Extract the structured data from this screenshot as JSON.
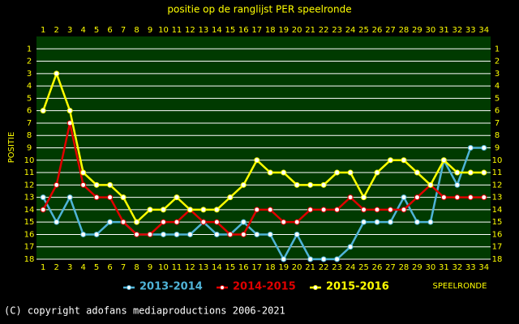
{
  "chart_data": {
    "type": "line",
    "title": "positie op de ranglijst PER speelronde",
    "ylabel": "POSITIE",
    "xlabel": "SPEELRONDE",
    "footer": "(C) copyright adofans mediaproductions 2006-2021",
    "x": [
      1,
      2,
      3,
      4,
      5,
      6,
      7,
      8,
      9,
      10,
      11,
      12,
      13,
      14,
      15,
      16,
      17,
      18,
      19,
      20,
      21,
      22,
      23,
      24,
      25,
      26,
      27,
      28,
      29,
      30,
      31,
      32,
      33,
      34
    ],
    "xlim": [
      0.5,
      34.5
    ],
    "xticks": [
      1,
      2,
      3,
      4,
      5,
      6,
      7,
      8,
      9,
      10,
      11,
      12,
      13,
      14,
      15,
      16,
      17,
      18,
      19,
      20,
      21,
      22,
      23,
      24,
      25,
      26,
      27,
      28,
      29,
      30,
      31,
      32,
      33,
      34
    ],
    "ylim": [
      18,
      0
    ],
    "yticks": [
      1,
      2,
      3,
      4,
      5,
      6,
      7,
      8,
      9,
      10,
      11,
      12,
      13,
      14,
      15,
      16,
      17,
      18
    ],
    "grid": true,
    "series": [
      {
        "name": "2013-2014",
        "color": "#4fb4d8",
        "values": [
          13,
          15,
          13,
          16,
          16,
          15,
          15,
          16,
          16,
          16,
          16,
          16,
          15,
          16,
          16,
          15,
          16,
          16,
          18,
          16,
          18,
          18,
          18,
          17,
          15,
          15,
          15,
          13,
          15,
          15,
          10,
          12,
          9,
          9
        ]
      },
      {
        "name": "2014-2015",
        "color": "#e00000",
        "values": [
          14,
          12,
          7,
          12,
          13,
          13,
          15,
          16,
          16,
          15,
          15,
          14,
          15,
          15,
          16,
          16,
          14,
          14,
          15,
          15,
          14,
          14,
          14,
          13,
          14,
          14,
          14,
          14,
          13,
          12,
          13,
          13,
          13,
          13
        ]
      },
      {
        "name": "2015-2016",
        "color": "#ffff00",
        "values": [
          6,
          3,
          6,
          11,
          12,
          12,
          13,
          15,
          14,
          14,
          13,
          14,
          14,
          14,
          13,
          12,
          10,
          11,
          11,
          12,
          12,
          12,
          11,
          11,
          13,
          11,
          10,
          10,
          11,
          12,
          10,
          11,
          11,
          11
        ]
      }
    ]
  }
}
